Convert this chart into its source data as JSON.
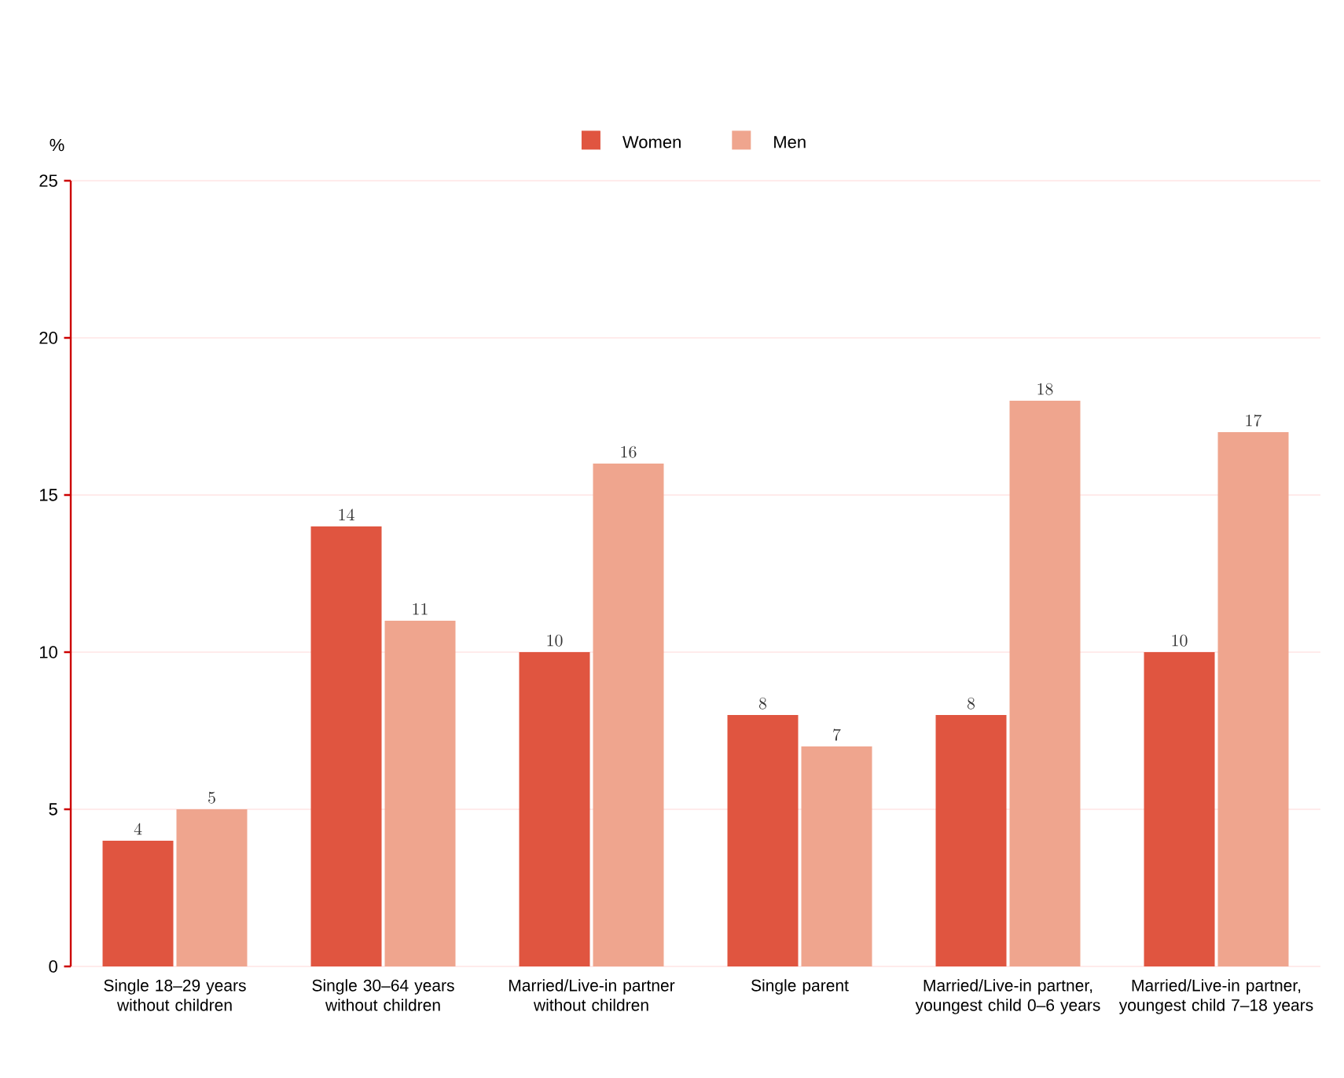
{
  "chart_data": {
    "type": "bar",
    "ylabel": "%",
    "categories": [
      "Single 18–29 years without children",
      "Single 30–64 years without children",
      "Married/Live-in partner without children",
      "Single parent",
      "Married/Live-in partner, youngest child 0–6 years",
      "Married/Live-in partner, youngest child 7–18 years"
    ],
    "series": [
      {
        "name": "Women",
        "color": "#e05540",
        "values": [
          4,
          14,
          10,
          8,
          8,
          10
        ]
      },
      {
        "name": "Men",
        "color": "#efa58e",
        "values": [
          5,
          11,
          16,
          7,
          18,
          17
        ]
      }
    ],
    "ylim": [
      0,
      25
    ],
    "yticks": [
      0,
      5,
      10,
      15,
      20,
      25
    ],
    "grid": "y",
    "legend": "top",
    "data_labels": true
  }
}
